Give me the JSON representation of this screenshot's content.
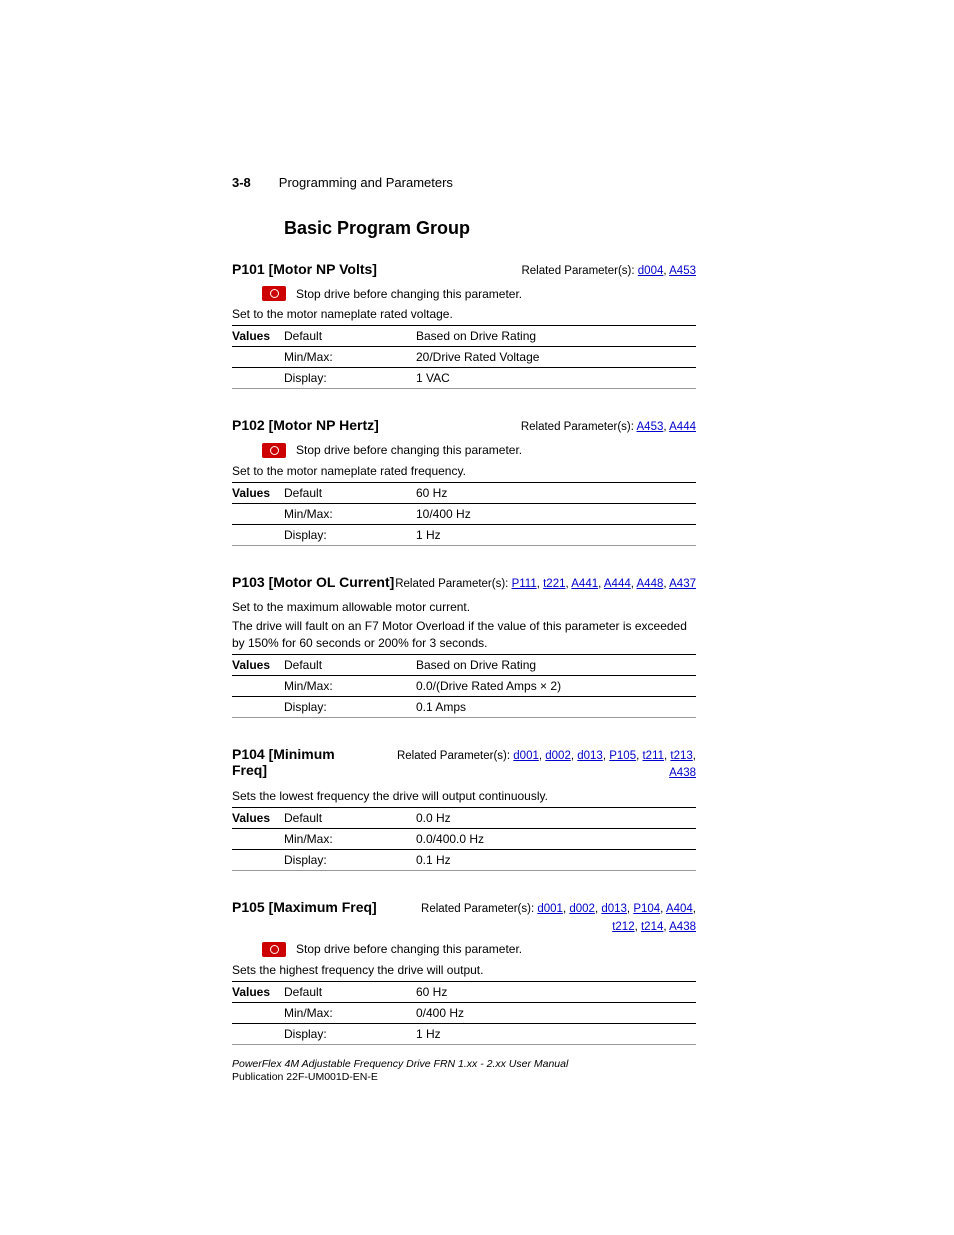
{
  "header": {
    "page_num": "3-8",
    "section": "Programming and Parameters"
  },
  "group_title": "Basic Program Group",
  "related_prefix": "Related Parameter(s): ",
  "stop_drive_text": "Stop drive before changing this parameter.",
  "values_label": "Values",
  "row_keys": {
    "default": "Default",
    "minmax": "Min/Max:",
    "display": "Display:"
  },
  "params": {
    "p101": {
      "title": "P101 [Motor NP Volts]",
      "related": [
        "d004",
        "A453"
      ],
      "stop_warning": true,
      "descs": [
        "Set to the motor nameplate rated voltage."
      ],
      "rows": {
        "default": "Based on Drive Rating",
        "minmax": "20/Drive Rated Voltage",
        "display": "1 VAC"
      }
    },
    "p102": {
      "title": "P102 [Motor NP Hertz]",
      "related": [
        "A453",
        "A444"
      ],
      "stop_warning": true,
      "descs": [
        "Set to the motor nameplate rated frequency."
      ],
      "rows": {
        "default": "60 Hz",
        "minmax": "10/400 Hz",
        "display": "1 Hz"
      }
    },
    "p103": {
      "title": "P103 [Motor OL Current]",
      "related": [
        "P111",
        "t221",
        "A441",
        "A444",
        "A448",
        "A437"
      ],
      "stop_warning": false,
      "descs": [
        "Set to the maximum allowable motor current.",
        "The drive will fault on an F7 Motor Overload if the value of this parameter is exceeded by 150% for 60 seconds or 200% for 3 seconds."
      ],
      "rows": {
        "default": "Based on Drive Rating",
        "minmax": "0.0/(Drive Rated Amps × 2)",
        "display": "0.1 Amps"
      }
    },
    "p104": {
      "title": "P104 [Minimum Freq]",
      "related": [
        "d001",
        "d002",
        "d013",
        "P105",
        "t211",
        "t213",
        "A438"
      ],
      "stop_warning": false,
      "descs": [
        "Sets the lowest frequency the drive will output continuously."
      ],
      "rows": {
        "default": "0.0 Hz",
        "minmax": "0.0/400.0 Hz",
        "display": "0.1 Hz"
      }
    },
    "p105": {
      "title": "P105 [Maximum Freq]",
      "related_line1": [
        "d001",
        "d002",
        "d013",
        "P104",
        "A404"
      ],
      "related_line2": [
        "t212",
        "t214",
        "A438"
      ],
      "stop_warning": true,
      "descs": [
        "Sets the highest frequency the drive will output."
      ],
      "rows": {
        "default": "60 Hz",
        "minmax": "0/400 Hz",
        "display": "1 Hz"
      }
    }
  },
  "footer": {
    "line1": "PowerFlex 4M Adjustable Frequency Drive FRN 1.xx - 2.xx User Manual",
    "line2": "Publication 22F-UM001D-EN-E"
  },
  "colors": {
    "link": "#0000cc",
    "stop_bg": "#cc0000"
  }
}
